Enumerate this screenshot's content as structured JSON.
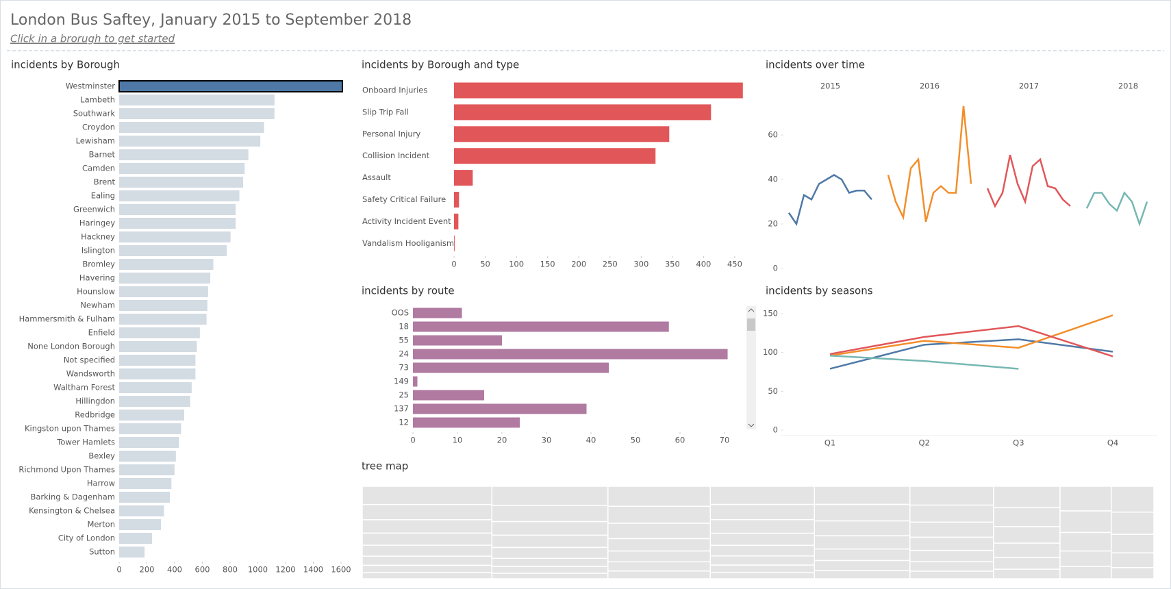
{
  "title": "London Bus Saftey, January 2015 to September 2018",
  "subtitle": "Click in a brorugh to get started",
  "chart_data": [
    {
      "type": "bar",
      "orientation": "horizontal",
      "title": "incidents by Borough",
      "categories": [
        "Westminster",
        "Lambeth",
        "Southwark",
        "Croydon",
        "Lewisham",
        "Barnet",
        "Camden",
        "Brent",
        "Ealing",
        "Greenwich",
        "Haringey",
        "Hackney",
        "Islington",
        "Bromley",
        "Havering",
        "Hounslow",
        "Newham",
        "Hammersmith & Fulham",
        "Enfield",
        "None London Borough",
        "Not specified",
        "Wandsworth",
        "Waltham Forest",
        "Hillingdon",
        "Redbridge",
        "Kingston upon Thames",
        "Tower Hamlets",
        "Bexley",
        "Richmond Upon Thames",
        "Harrow",
        "Barking & Dagenham",
        "Kensington & Chelsea",
        "Merton",
        "City of London",
        "Sutton"
      ],
      "values": [
        1610,
        1120,
        1120,
        1045,
        1018,
        932,
        905,
        894,
        867,
        840,
        840,
        803,
        776,
        679,
        657,
        641,
        636,
        630,
        582,
        560,
        550,
        550,
        523,
        512,
        469,
        447,
        431,
        409,
        399,
        377,
        366,
        323,
        302,
        237,
        183
      ],
      "colors": [
        "#4e79a7",
        "#d3dbe3",
        "#d3dbe3",
        "#d3dbe3",
        "#d3dbe3",
        "#d3dbe3",
        "#d3dbe3",
        "#d3dbe3",
        "#d3dbe3",
        "#d3dbe3",
        "#d3dbe3",
        "#d3dbe3",
        "#d3dbe3",
        "#d3dbe3",
        "#d3dbe3",
        "#d3dbe3",
        "#d3dbe3",
        "#d3dbe3",
        "#d3dbe3",
        "#d3dbe3",
        "#d3dbe3",
        "#d3dbe3",
        "#d3dbe3",
        "#d3dbe3",
        "#d3dbe3",
        "#d3dbe3",
        "#d3dbe3",
        "#d3dbe3",
        "#d3dbe3",
        "#d3dbe3",
        "#d3dbe3",
        "#d3dbe3",
        "#d3dbe3",
        "#d3dbe3",
        "#d3dbe3"
      ],
      "xlim": [
        0,
        1650
      ],
      "xticks": [
        0,
        200,
        400,
        600,
        800,
        1000,
        1200,
        1400,
        1600
      ]
    },
    {
      "type": "bar",
      "orientation": "horizontal",
      "title": "incidents by Borough and type",
      "categories": [
        "Onboard Injuries",
        "Slip Trip Fall",
        "Personal Injury",
        "Collision Incident",
        "Assault",
        "Safety Critical Failure",
        "Activity Incident Event",
        "Vandalism Hooliganism"
      ],
      "values": [
        463,
        412,
        345,
        323,
        30,
        8,
        7,
        1
      ],
      "color": "#e15759",
      "xlim": [
        0,
        470
      ],
      "xticks": [
        0,
        50,
        100,
        150,
        200,
        250,
        300,
        350,
        400,
        450
      ]
    },
    {
      "type": "bar",
      "orientation": "horizontal",
      "title": "incidents by route",
      "categories": [
        "OOS",
        "18",
        "55",
        "24",
        "73",
        "149",
        "25",
        "137",
        "12"
      ],
      "values": [
        11,
        57.5,
        20,
        70.7,
        44,
        1,
        16,
        39,
        24
      ],
      "color": "#b07aa1",
      "xlim": [
        0,
        74
      ],
      "xticks": [
        0,
        10,
        20,
        30,
        40,
        50,
        60,
        70
      ]
    },
    {
      "type": "line",
      "title": "incidents over time",
      "ylim": [
        0,
        75
      ],
      "yticks": [
        0,
        20,
        40,
        60
      ],
      "series": [
        {
          "name": "2015",
          "color": "#4e79a7",
          "values": [
            25,
            20,
            33,
            31,
            38,
            40,
            42,
            40,
            34,
            35,
            35,
            31
          ]
        },
        {
          "name": "2016",
          "color": "#f28e2b",
          "values": [
            42,
            30,
            23,
            45,
            49,
            21,
            34,
            37,
            34,
            34,
            73,
            38
          ]
        },
        {
          "name": "2017",
          "color": "#e15759",
          "values": [
            36,
            28,
            34,
            51,
            38,
            30,
            46,
            49,
            37,
            36,
            31,
            28
          ]
        },
        {
          "name": "2018",
          "color": "#76b7b2",
          "values": [
            27,
            34,
            34,
            29,
            26,
            34,
            30,
            20,
            30
          ]
        }
      ]
    },
    {
      "type": "line",
      "title": "incidents by seasons",
      "categories": [
        "Q1",
        "Q2",
        "Q3",
        "Q4"
      ],
      "ylim": [
        0,
        155
      ],
      "yticks": [
        0,
        50,
        100,
        150
      ],
      "series": [
        {
          "color": "#4e79a7",
          "values": [
            79,
            110,
            117,
            101
          ]
        },
        {
          "color": "#f28e2b",
          "values": [
            96,
            115,
            106,
            148
          ]
        },
        {
          "color": "#e15759",
          "values": [
            98,
            120,
            134,
            95
          ]
        },
        {
          "color": "#76b7b2",
          "values": [
            96,
            89,
            79,
            null
          ]
        }
      ]
    },
    {
      "type": "treemap",
      "title": "tree map",
      "color": "#e4e4e4",
      "values": [
        [
          30,
          25,
          22,
          20,
          18,
          15,
          12,
          10
        ],
        [
          28,
          24,
          20,
          18,
          16,
          12,
          10,
          8
        ],
        [
          26,
          22,
          20,
          16,
          14,
          12,
          10
        ],
        [
          24,
          20,
          18,
          16,
          14,
          12,
          10,
          8
        ],
        [
          22,
          20,
          18,
          16,
          14,
          12,
          10
        ],
        [
          20,
          18,
          16,
          14,
          12,
          10,
          8
        ],
        [
          18,
          16,
          14,
          12,
          10,
          8
        ],
        [
          16,
          14,
          12,
          10,
          8
        ],
        [
          14,
          12,
          10,
          8,
          6
        ]
      ]
    }
  ]
}
